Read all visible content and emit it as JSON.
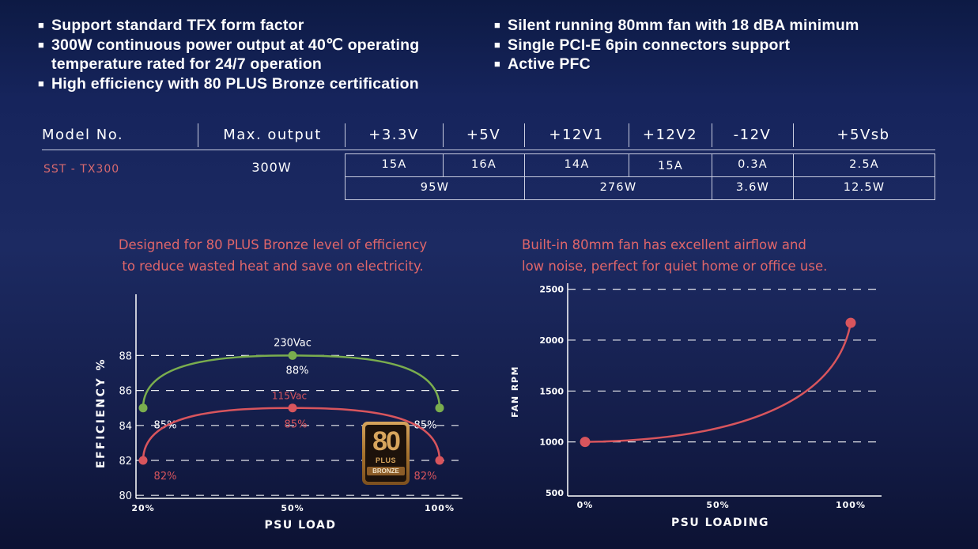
{
  "features": {
    "left": [
      "Support standard TFX form factor",
      "300W continuous power output at 40℃ operating temperature rated for 24/7 operation",
      "High efficiency with 80 PLUS Bronze certification"
    ],
    "right": [
      "Silent running 80mm fan with 18 dBA minimum",
      "Single PCI-E 6pin connectors support",
      "Active PFC"
    ]
  },
  "spec_table": {
    "headers": [
      "Model No.",
      "Max. output",
      "+3.3V",
      "+5V",
      "+12V1",
      "+12V2",
      "-12V",
      "+5Vsb"
    ],
    "model": "SST - TX300",
    "max_output": "300W",
    "amps": [
      "15A",
      "16A",
      "14A",
      "15A",
      "0.3A",
      "2.5A"
    ],
    "watts": [
      "95W",
      "276W",
      "3.6W",
      "12.5W"
    ]
  },
  "efficiency_desc": [
    "Designed for 80 PLUS Bronze level of efficiency",
    "to reduce wasted heat and save on electricity."
  ],
  "fan_desc": [
    "Built-in 80mm fan has excellent airflow and",
    "low noise, perfect for quiet home or office use."
  ],
  "badge": {
    "number": "80",
    "plus": "PLUS",
    "level": "BRONZE"
  },
  "colors": {
    "green": "#7aad4e",
    "red": "#d8555d",
    "accent_text": "#e0666a"
  },
  "chart_data": [
    {
      "type": "line",
      "xlabel": "PSU LOAD",
      "ylabel": "EFFICIENCY %",
      "x": [
        "20%",
        "50%",
        "100%"
      ],
      "ylim": [
        79,
        90
      ],
      "yticks": [
        80,
        82,
        84,
        86,
        88
      ],
      "grid": "horizontal dashed",
      "series": [
        {
          "name": "230Vac",
          "values": [
            85,
            88,
            85
          ],
          "labels": [
            "85%",
            "88%",
            "85%"
          ],
          "color": "#7aad4e"
        },
        {
          "name": "115Vac",
          "values": [
            82,
            85,
            82
          ],
          "labels": [
            "82%",
            "85%",
            "82%"
          ],
          "color": "#d8555d"
        }
      ]
    },
    {
      "type": "line",
      "xlabel": "PSU LOADING",
      "ylabel": "FAN RPM",
      "x": [
        "0%",
        "50%",
        "100%"
      ],
      "xvalues": [
        0,
        50,
        100
      ],
      "ylim": [
        500,
        2500
      ],
      "yticks": [
        500,
        1000,
        1500,
        2000,
        2500
      ],
      "grid": "horizontal dashed",
      "series": [
        {
          "values": [
            1000,
            2170
          ],
          "x": [
            0,
            100
          ],
          "color": "#d8555d"
        }
      ]
    }
  ]
}
